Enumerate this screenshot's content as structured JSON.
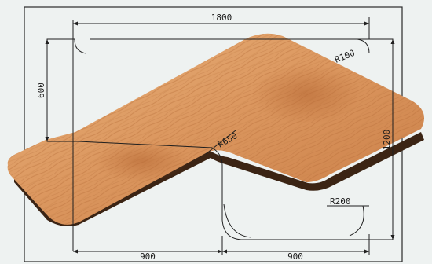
{
  "diagram": {
    "dimensions": {
      "top_width": "1800",
      "left_height": "600",
      "right_height": "1200",
      "bottom_left": "900",
      "bottom_right": "900"
    },
    "radii": {
      "outer_corner": "R100",
      "inner_corner": "R650",
      "cutout_corner": "R200"
    },
    "colors": {
      "background": "#eef2f1",
      "line": "#1f1f1f",
      "wood_light": "#e9b07a",
      "wood_mid": "#d98f56",
      "wood_dark": "#b86a35",
      "edge": "#2a1a10"
    },
    "icons": {
      "tabletop": "corner-desk-tabletop-icon"
    }
  }
}
